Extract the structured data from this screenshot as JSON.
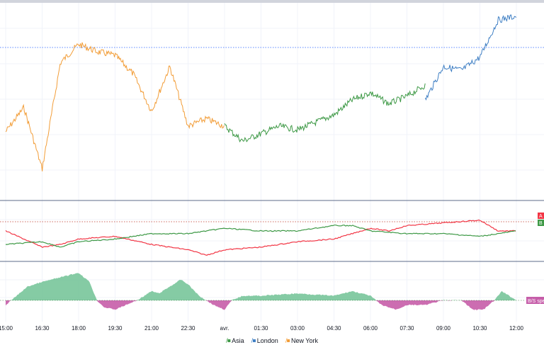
{
  "chart_data": [
    {
      "type": "line",
      "panel": "price",
      "x_ticks": [
        "15:00",
        "16:30",
        "18:00",
        "19:30",
        "21:00",
        "22:30",
        "avr.",
        "01:30",
        "03:00",
        "04:30",
        "06:00",
        "07:30",
        "09:00",
        "10:30",
        "12:00"
      ],
      "reference_line": {
        "style": "dotted",
        "color": "#2962ff"
      },
      "ylim": [
        0,
        100
      ],
      "series": [
        {
          "name": "New York",
          "color": "#f29d38",
          "x": [
            0,
            0.5,
            1,
            1.5,
            2,
            2.5,
            3,
            3.5,
            4,
            4.5,
            5,
            5.5,
            6
          ],
          "y": [
            35,
            48,
            15,
            72,
            82,
            78,
            76,
            66,
            46,
            70,
            38,
            42,
            38
          ]
        },
        {
          "name": "Asia",
          "color": "#3e9946",
          "x": [
            6,
            6.5,
            7,
            7.5,
            8,
            8.5,
            9,
            9.5,
            10,
            10.5,
            11,
            11.5
          ],
          "y": [
            38,
            30,
            34,
            38,
            36,
            40,
            44,
            52,
            56,
            50,
            54,
            60
          ]
        },
        {
          "name": "London",
          "color": "#3f7fc4",
          "x": [
            11.5,
            12,
            12.5,
            13,
            13.5,
            14
          ],
          "y": [
            52,
            70,
            68,
            75,
            95,
            97
          ]
        }
      ]
    },
    {
      "type": "line",
      "panel": "indicator",
      "badges": [
        {
          "label": "A",
          "color": "#f23645"
        },
        {
          "label": "B",
          "color": "#3e9946"
        }
      ],
      "reference_line": {
        "style": "dotted",
        "color": "#c0392b"
      },
      "ylim": [
        -10,
        10
      ],
      "series": [
        {
          "name": "A",
          "color": "#f23645",
          "x": [
            0,
            1,
            1.5,
            2,
            3,
            4,
            5,
            5.5,
            6,
            7,
            8,
            9,
            10,
            10.5,
            11,
            12,
            13,
            13.5,
            14
          ],
          "y": [
            0,
            -6,
            -5,
            -3,
            -2,
            -5,
            -7,
            -9,
            -7,
            -6,
            -4,
            -3,
            1,
            0,
            2,
            3,
            4,
            0,
            0
          ]
        },
        {
          "name": "B",
          "color": "#3e9946",
          "x": [
            0,
            1,
            1.5,
            2,
            3,
            4,
            5,
            6,
            7,
            8,
            9,
            9.5,
            10,
            11,
            12,
            13,
            14
          ],
          "y": [
            -5,
            -4,
            -6,
            -4,
            -3,
            -1,
            -1,
            1,
            0,
            0,
            2,
            2,
            0,
            -1,
            -1,
            -2,
            0
          ]
        }
      ]
    },
    {
      "type": "area",
      "panel": "histogram",
      "badge": {
        "label": "B/S spe",
        "color": "#c65da9"
      },
      "positive_color": "#78c59a",
      "negative_color": "#c65da9",
      "ylim": [
        -4,
        8
      ],
      "series": [
        {
          "name": "B/S spe",
          "x": [
            0,
            0.3,
            0.6,
            1,
            1.5,
            2,
            2.3,
            2.5,
            2.7,
            3,
            3.3,
            3.6,
            4,
            4.2,
            4.5,
            4.8,
            5,
            5.3,
            5.7,
            6,
            6.2,
            6.5,
            7,
            8,
            9,
            9.5,
            10,
            10.3,
            10.7,
            11,
            11.5,
            12,
            12.5,
            12.8,
            13.1,
            13.4,
            13.6,
            13.8,
            14
          ],
          "y": [
            -1,
            1,
            3,
            4,
            5,
            6,
            4,
            0,
            -1.5,
            -2,
            -1,
            0,
            2,
            1.5,
            3,
            4.5,
            3.5,
            1,
            -1,
            -2,
            0,
            1,
            1,
            1.5,
            1,
            2,
            1,
            -1,
            -2,
            -1,
            -1,
            0,
            0,
            -2,
            -2,
            0,
            2,
            1,
            0
          ]
        }
      ]
    }
  ],
  "legend": [
    {
      "label": "Asia",
      "color": "#3e9946"
    },
    {
      "label": "London",
      "color": "#3f7fc4"
    },
    {
      "label": "New York",
      "color": "#f29d38"
    }
  ]
}
